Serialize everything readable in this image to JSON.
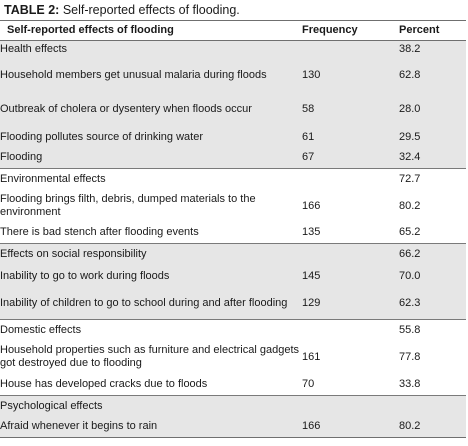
{
  "caption": {
    "label": "TABLE 2:",
    "text": "Self-reported effects of flooding."
  },
  "headers": {
    "effect": "Self-reported effects of flooding",
    "frequency": "Frequency",
    "percent": "Percent"
  },
  "rows": [
    {
      "type": "category",
      "label": "Health effects",
      "frequency": "",
      "percent": "38.2"
    },
    {
      "type": "item",
      "label": "Household members get unusual malaria during floods",
      "frequency": "130",
      "percent": "62.8"
    },
    {
      "type": "subitem",
      "label": "Outbreak of cholera or dysentery when floods occur",
      "frequency": "58",
      "percent": "28.0"
    },
    {
      "type": "subitem",
      "label": "Flooding pollutes source of drinking water",
      "frequency": "61",
      "percent": "29.5"
    },
    {
      "type": "subitem",
      "label": "Flooding",
      "frequency": "67",
      "percent": "32.4"
    },
    {
      "type": "category",
      "label": "Environmental effects",
      "frequency": "",
      "percent": "72.7"
    },
    {
      "type": "item",
      "label": "Flooding brings filth, debris, dumped materials to the environment",
      "frequency": "166",
      "percent": "80.2"
    },
    {
      "type": "item",
      "label": "There is bad stench after flooding events",
      "frequency": "135",
      "percent": "65.2"
    },
    {
      "type": "category",
      "label": "Effects on social responsibility",
      "frequency": "",
      "percent": "66.2"
    },
    {
      "type": "item",
      "label": "Inability to go to work during floods",
      "frequency": "145",
      "percent": "70.0"
    },
    {
      "type": "item",
      "label": "Inability of children to go to school during and after flooding",
      "frequency": "129",
      "percent": "62.3"
    },
    {
      "type": "category",
      "label": "Domestic effects",
      "frequency": "",
      "percent": "55.8"
    },
    {
      "type": "item",
      "label": "Household properties such as furniture and electrical gadgets got destroyed due to flooding",
      "frequency": "161",
      "percent": "77.8"
    },
    {
      "type": "item",
      "label": "House has developed cracks due to floods",
      "frequency": "70",
      "percent": "33.8"
    },
    {
      "type": "category",
      "label": "Psychological effects",
      "frequency": "",
      "percent": ""
    },
    {
      "type": "item",
      "label": "Afraid whenever it begins to rain",
      "frequency": "166",
      "percent": "80.2"
    }
  ],
  "colors": {
    "band_grey": "#e6e6e6",
    "band_white": "#ffffff",
    "rule": "#6f6f6f",
    "text": "#1a1a1a"
  }
}
